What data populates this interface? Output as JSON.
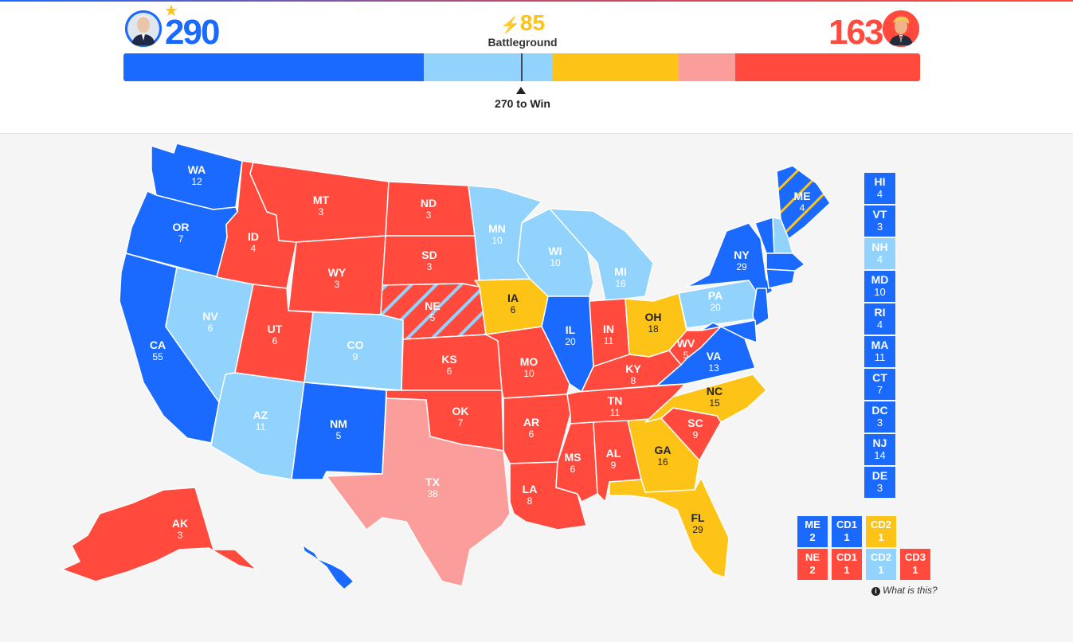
{
  "colors": {
    "solid_dem": "#1a6aff",
    "lean_dem": "#92d3fd",
    "battleground": "#fdc317",
    "lean_rep": "#fb9e9b",
    "solid_rep": "#ff4a3d",
    "background": "#f5f5f5"
  },
  "header": {
    "dem_score": "290",
    "rep_score": "163",
    "battleground_count": "85",
    "battleground_label": "Battleground",
    "win_label": "270 to Win",
    "winner_star": "★",
    "bolt_icon": "⚡",
    "dem_avatar_icon": "candidate-portrait-icon",
    "rep_avatar_icon": "candidate-portrait-icon"
  },
  "bar": {
    "segments": [
      {
        "category": "solid_dem",
        "votes": 203
      },
      {
        "category": "lean_dem",
        "votes": 87
      },
      {
        "category": "battleground",
        "votes": 85
      },
      {
        "category": "lean_rep",
        "votes": 38
      },
      {
        "category": "solid_rep",
        "votes": 125
      }
    ],
    "total": 538,
    "threshold": 270
  },
  "states": [
    {
      "abbr": "WA",
      "ev": "12",
      "rating": "solid_dem"
    },
    {
      "abbr": "OR",
      "ev": "7",
      "rating": "solid_dem"
    },
    {
      "abbr": "CA",
      "ev": "55",
      "rating": "solid_dem"
    },
    {
      "abbr": "NV",
      "ev": "6",
      "rating": "lean_dem"
    },
    {
      "abbr": "ID",
      "ev": "4",
      "rating": "solid_rep"
    },
    {
      "abbr": "MT",
      "ev": "3",
      "rating": "solid_rep"
    },
    {
      "abbr": "WY",
      "ev": "3",
      "rating": "solid_rep"
    },
    {
      "abbr": "UT",
      "ev": "6",
      "rating": "solid_rep"
    },
    {
      "abbr": "CO",
      "ev": "9",
      "rating": "lean_dem"
    },
    {
      "abbr": "AZ",
      "ev": "11",
      "rating": "lean_dem"
    },
    {
      "abbr": "NM",
      "ev": "5",
      "rating": "solid_dem"
    },
    {
      "abbr": "ND",
      "ev": "3",
      "rating": "solid_rep"
    },
    {
      "abbr": "SD",
      "ev": "3",
      "rating": "solid_rep"
    },
    {
      "abbr": "NE",
      "ev": "5",
      "rating": "solid_rep"
    },
    {
      "abbr": "KS",
      "ev": "6",
      "rating": "solid_rep"
    },
    {
      "abbr": "OK",
      "ev": "7",
      "rating": "solid_rep"
    },
    {
      "abbr": "TX",
      "ev": "38",
      "rating": "lean_rep"
    },
    {
      "abbr": "MN",
      "ev": "10",
      "rating": "lean_dem"
    },
    {
      "abbr": "IA",
      "ev": "6",
      "rating": "battleground"
    },
    {
      "abbr": "MO",
      "ev": "10",
      "rating": "solid_rep"
    },
    {
      "abbr": "AR",
      "ev": "6",
      "rating": "solid_rep"
    },
    {
      "abbr": "LA",
      "ev": "8",
      "rating": "solid_rep"
    },
    {
      "abbr": "WI",
      "ev": "10",
      "rating": "lean_dem"
    },
    {
      "abbr": "IL",
      "ev": "20",
      "rating": "solid_dem"
    },
    {
      "abbr": "MI",
      "ev": "16",
      "rating": "lean_dem"
    },
    {
      "abbr": "IN",
      "ev": "11",
      "rating": "solid_rep"
    },
    {
      "abbr": "OH",
      "ev": "18",
      "rating": "battleground"
    },
    {
      "abbr": "KY",
      "ev": "8",
      "rating": "solid_rep"
    },
    {
      "abbr": "TN",
      "ev": "11",
      "rating": "solid_rep"
    },
    {
      "abbr": "MS",
      "ev": "6",
      "rating": "solid_rep"
    },
    {
      "abbr": "AL",
      "ev": "9",
      "rating": "solid_rep"
    },
    {
      "abbr": "GA",
      "ev": "16",
      "rating": "battleground"
    },
    {
      "abbr": "FL",
      "ev": "29",
      "rating": "battleground"
    },
    {
      "abbr": "SC",
      "ev": "9",
      "rating": "solid_rep"
    },
    {
      "abbr": "NC",
      "ev": "15",
      "rating": "battleground"
    },
    {
      "abbr": "VA",
      "ev": "13",
      "rating": "solid_dem"
    },
    {
      "abbr": "WV",
      "ev": "5",
      "rating": "solid_rep"
    },
    {
      "abbr": "PA",
      "ev": "20",
      "rating": "lean_dem"
    },
    {
      "abbr": "NY",
      "ev": "29",
      "rating": "solid_dem"
    },
    {
      "abbr": "ME",
      "ev": "4",
      "rating": "solid_dem"
    },
    {
      "abbr": "AK",
      "ev": "3",
      "rating": "solid_rep"
    },
    {
      "abbr": "HI",
      "ev": "4",
      "rating": "solid_dem"
    }
  ],
  "small_states": [
    {
      "abbr": "HI",
      "ev": "4",
      "rating": "solid_dem"
    },
    {
      "abbr": "VT",
      "ev": "3",
      "rating": "solid_dem"
    },
    {
      "abbr": "NH",
      "ev": "4",
      "rating": "lean_dem"
    },
    {
      "abbr": "MD",
      "ev": "10",
      "rating": "solid_dem"
    },
    {
      "abbr": "RI",
      "ev": "4",
      "rating": "solid_dem"
    },
    {
      "abbr": "MA",
      "ev": "11",
      "rating": "solid_dem"
    },
    {
      "abbr": "CT",
      "ev": "7",
      "rating": "solid_dem"
    },
    {
      "abbr": "DC",
      "ev": "3",
      "rating": "solid_dem"
    },
    {
      "abbr": "NJ",
      "ev": "14",
      "rating": "solid_dem"
    },
    {
      "abbr": "DE",
      "ev": "3",
      "rating": "solid_dem"
    }
  ],
  "split_states": {
    "me": [
      {
        "label": "ME",
        "ev": "2",
        "rating": "solid_dem"
      },
      {
        "label": "CD1",
        "ev": "1",
        "rating": "solid_dem"
      },
      {
        "label": "CD2",
        "ev": "1",
        "rating": "battleground"
      }
    ],
    "ne": [
      {
        "label": "NE",
        "ev": "2",
        "rating": "solid_rep"
      },
      {
        "label": "CD1",
        "ev": "1",
        "rating": "solid_rep"
      },
      {
        "label": "CD2",
        "ev": "1",
        "rating": "lean_dem"
      },
      {
        "label": "CD3",
        "ev": "1",
        "rating": "solid_rep"
      }
    ]
  },
  "footer": {
    "what_is_this": "What is this?",
    "info_icon": "i"
  }
}
